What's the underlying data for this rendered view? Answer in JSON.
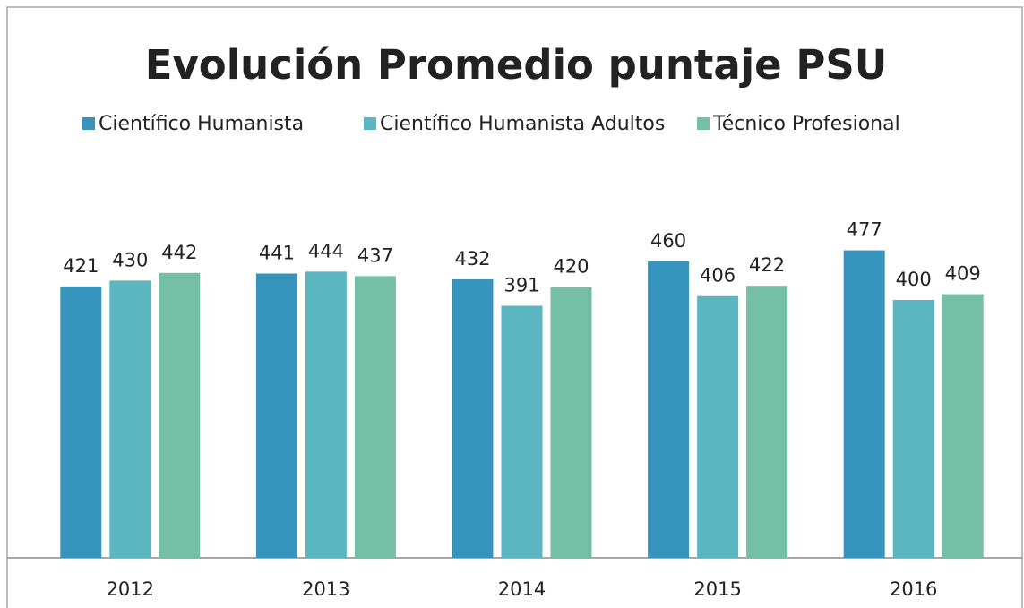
{
  "chart_data": {
    "type": "bar",
    "title": "Evolución Promedio puntaje PSU",
    "categories": [
      "2012",
      "2013",
      "2014",
      "2015",
      "2016"
    ],
    "series": [
      {
        "name": "Científico Humanista",
        "color": "#3795bd",
        "values": [
          421,
          441,
          432,
          460,
          477
        ]
      },
      {
        "name": "Científico Humanista Adultos",
        "color": "#5bb6c1",
        "values": [
          430,
          444,
          391,
          406,
          400
        ]
      },
      {
        "name": "Técnico Profesional",
        "color": "#74bfa5",
        "values": [
          442,
          437,
          420,
          422,
          409
        ]
      }
    ],
    "ylim": [
      0,
      600
    ],
    "legend": "top"
  }
}
